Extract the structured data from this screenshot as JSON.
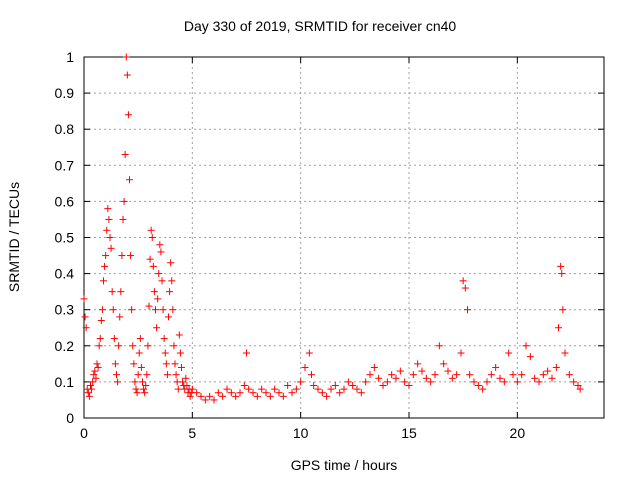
{
  "chart_data": {
    "type": "scatter",
    "title": "Day 330 of 2019, SRMTID for receiver cn40",
    "xlabel": "GPS time / hours",
    "ylabel": "SRMTID / TECUs",
    "xlim": [
      0,
      24
    ],
    "ylim": [
      0,
      1
    ],
    "xticks": [
      0,
      5,
      10,
      15,
      20
    ],
    "xtick_labels": [
      "0",
      "5",
      "10",
      "15",
      "20"
    ],
    "yticks": [
      0,
      0.1,
      0.2,
      0.3,
      0.4,
      0.5,
      0.6,
      0.7,
      0.8,
      0.9,
      1
    ],
    "ytick_labels": [
      "0",
      "0.1",
      "0.2",
      "0.3",
      "0.4",
      "0.5",
      "0.6",
      "0.7",
      "0.8",
      "0.9",
      "1"
    ],
    "grid": true,
    "marker": "+",
    "color": "#ff0000",
    "series": [
      {
        "name": "SRMTID",
        "x": [
          0.0,
          0.05,
          0.1,
          0.15,
          0.2,
          0.25,
          0.3,
          0.35,
          0.4,
          0.45,
          0.5,
          0.55,
          0.6,
          0.65,
          0.7,
          0.75,
          0.8,
          0.85,
          0.9,
          0.95,
          1.0,
          1.05,
          1.1,
          1.15,
          1.2,
          1.25,
          1.3,
          1.35,
          1.4,
          1.45,
          1.5,
          1.55,
          1.6,
          1.65,
          1.7,
          1.75,
          1.8,
          1.85,
          1.9,
          1.95,
          2.0,
          2.05,
          2.1,
          2.15,
          2.2,
          2.25,
          2.3,
          2.35,
          2.4,
          2.45,
          2.5,
          2.55,
          2.6,
          2.65,
          2.7,
          2.75,
          2.8,
          2.85,
          2.9,
          2.95,
          3.0,
          3.05,
          3.1,
          3.15,
          3.2,
          3.25,
          3.3,
          3.35,
          3.4,
          3.45,
          3.5,
          3.55,
          3.6,
          3.65,
          3.7,
          3.75,
          3.8,
          3.85,
          3.9,
          3.95,
          4.0,
          4.05,
          4.1,
          4.15,
          4.2,
          4.25,
          4.3,
          4.35,
          4.4,
          4.45,
          4.5,
          4.55,
          4.6,
          4.65,
          4.7,
          4.75,
          4.8,
          4.85,
          4.9,
          4.95,
          5.0,
          5.2,
          5.4,
          5.6,
          5.8,
          6.0,
          6.2,
          6.4,
          6.6,
          6.8,
          7.0,
          7.2,
          7.4,
          7.5,
          7.6,
          7.8,
          8.0,
          8.2,
          8.4,
          8.6,
          8.8,
          9.0,
          9.2,
          9.4,
          9.6,
          9.8,
          10.0,
          10.2,
          10.4,
          10.5,
          10.6,
          10.8,
          11.0,
          11.2,
          11.4,
          11.6,
          11.8,
          12.0,
          12.2,
          12.4,
          12.6,
          12.8,
          13.0,
          13.2,
          13.4,
          13.6,
          13.8,
          14.0,
          14.2,
          14.4,
          14.6,
          14.8,
          15.0,
          15.2,
          15.4,
          15.6,
          15.8,
          16.0,
          16.2,
          16.4,
          16.6,
          16.8,
          17.0,
          17.2,
          17.4,
          17.5,
          17.6,
          17.7,
          17.8,
          18.0,
          18.2,
          18.4,
          18.6,
          18.8,
          19.0,
          19.2,
          19.4,
          19.6,
          19.8,
          20.0,
          20.2,
          20.4,
          20.6,
          20.8,
          21.0,
          21.2,
          21.4,
          21.6,
          21.8,
          21.9,
          22.0,
          22.05,
          22.1,
          22.2,
          22.4,
          22.6,
          22.8,
          22.9
        ],
        "y": [
          0.33,
          0.28,
          0.25,
          0.08,
          0.07,
          0.06,
          0.09,
          0.08,
          0.1,
          0.12,
          0.13,
          0.11,
          0.15,
          0.14,
          0.2,
          0.22,
          0.27,
          0.3,
          0.38,
          0.42,
          0.45,
          0.52,
          0.58,
          0.55,
          0.5,
          0.47,
          0.35,
          0.3,
          0.22,
          0.15,
          0.12,
          0.1,
          0.2,
          0.28,
          0.35,
          0.45,
          0.55,
          0.6,
          0.73,
          1.0,
          0.95,
          0.84,
          0.66,
          0.45,
          0.3,
          0.2,
          0.15,
          0.1,
          0.08,
          0.07,
          0.12,
          0.18,
          0.22,
          0.14,
          0.1,
          0.08,
          0.07,
          0.09,
          0.12,
          0.2,
          0.31,
          0.44,
          0.52,
          0.5,
          0.42,
          0.35,
          0.3,
          0.25,
          0.33,
          0.4,
          0.48,
          0.46,
          0.38,
          0.3,
          0.22,
          0.18,
          0.15,
          0.12,
          0.28,
          0.35,
          0.43,
          0.38,
          0.3,
          0.2,
          0.15,
          0.12,
          0.1,
          0.08,
          0.23,
          0.18,
          0.14,
          0.1,
          0.09,
          0.08,
          0.11,
          0.09,
          0.07,
          0.08,
          0.06,
          0.07,
          0.08,
          0.07,
          0.06,
          0.05,
          0.06,
          0.05,
          0.07,
          0.06,
          0.08,
          0.07,
          0.06,
          0.07,
          0.09,
          0.18,
          0.08,
          0.07,
          0.06,
          0.08,
          0.07,
          0.06,
          0.08,
          0.07,
          0.06,
          0.09,
          0.07,
          0.08,
          0.1,
          0.14,
          0.18,
          0.12,
          0.09,
          0.08,
          0.07,
          0.06,
          0.08,
          0.09,
          0.07,
          0.08,
          0.1,
          0.09,
          0.08,
          0.07,
          0.1,
          0.12,
          0.14,
          0.11,
          0.09,
          0.1,
          0.12,
          0.11,
          0.13,
          0.1,
          0.09,
          0.12,
          0.15,
          0.13,
          0.11,
          0.1,
          0.12,
          0.2,
          0.15,
          0.13,
          0.11,
          0.12,
          0.18,
          0.38,
          0.36,
          0.3,
          0.12,
          0.1,
          0.09,
          0.08,
          0.1,
          0.12,
          0.14,
          0.11,
          0.1,
          0.18,
          0.12,
          0.1,
          0.12,
          0.2,
          0.17,
          0.11,
          0.1,
          0.12,
          0.13,
          0.11,
          0.14,
          0.25,
          0.42,
          0.4,
          0.3,
          0.18,
          0.12,
          0.1,
          0.09,
          0.08
        ]
      }
    ]
  }
}
